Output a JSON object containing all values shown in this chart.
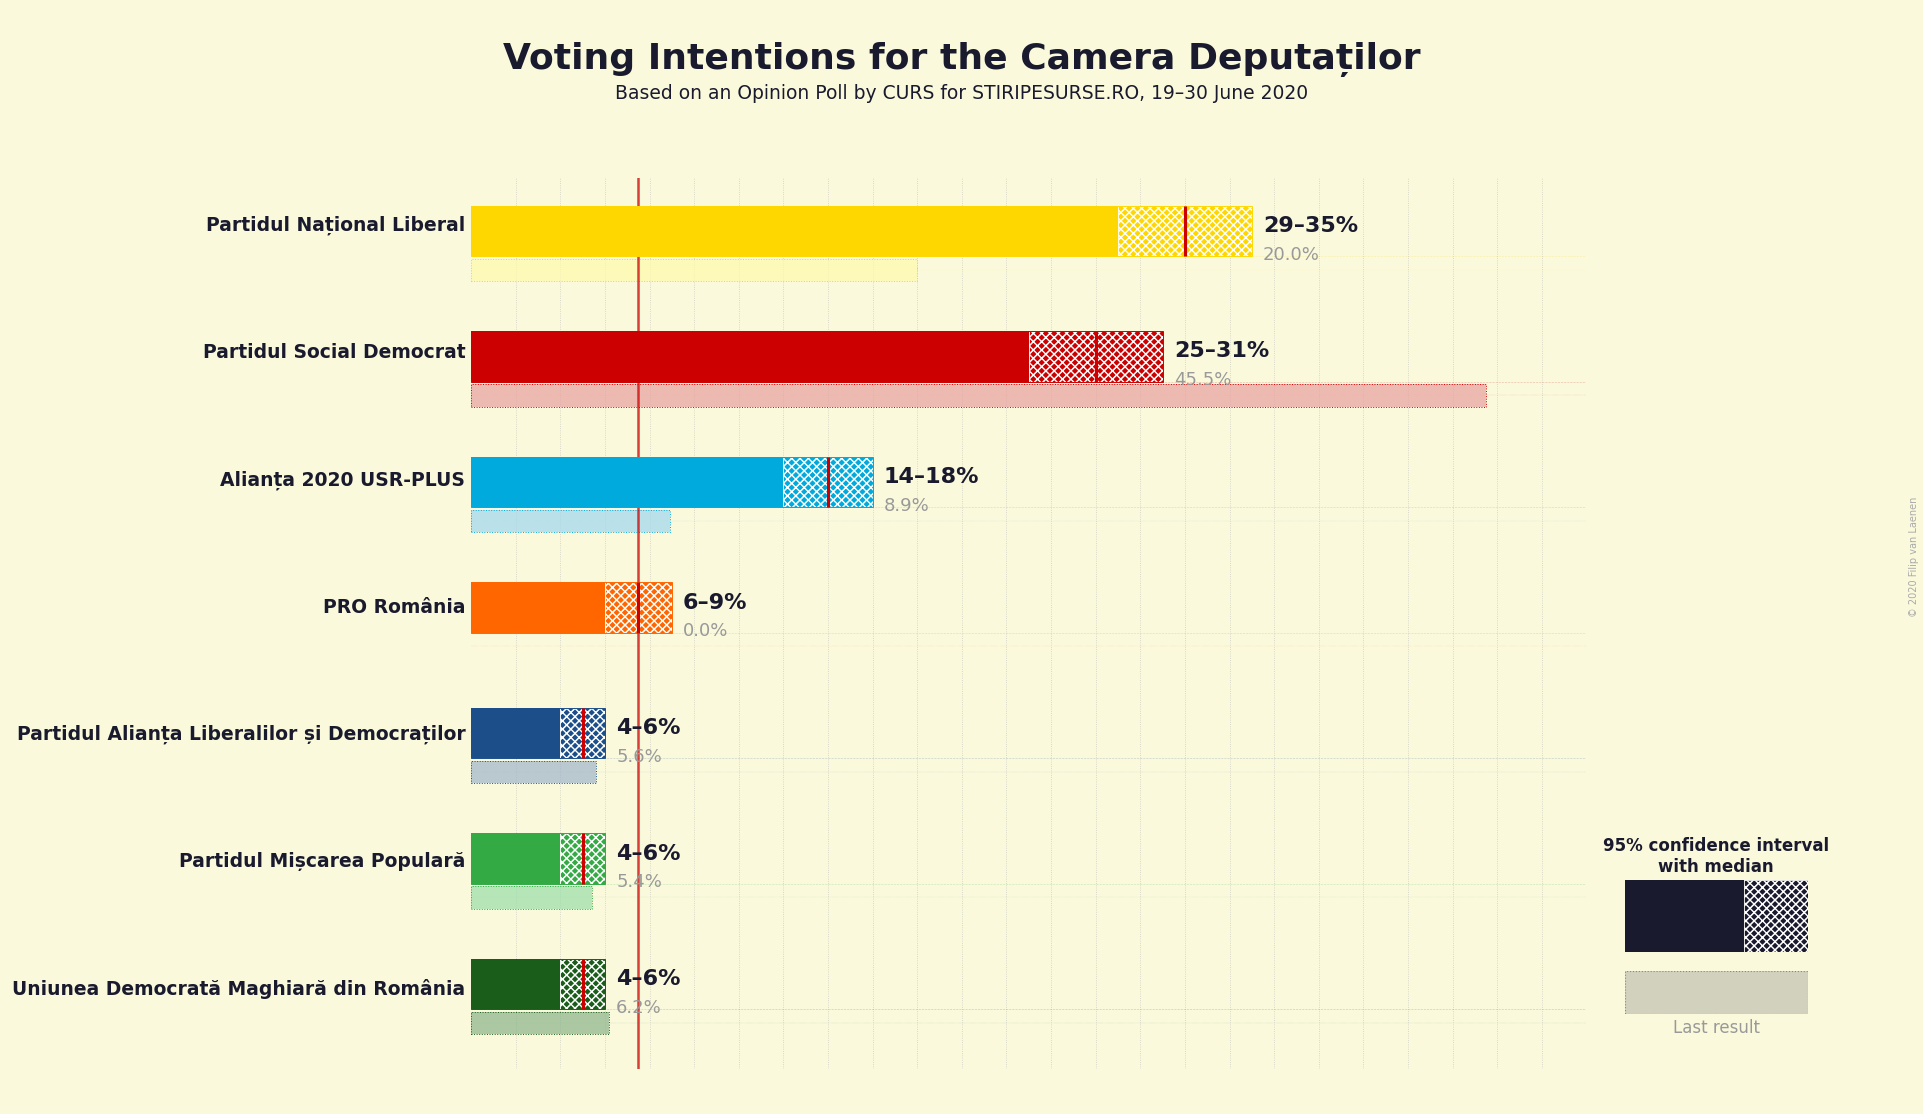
{
  "title": "Voting Intentions for the Camera Deputaților",
  "subtitle": "Based on an Opinion Poll by CURS for STIRIPESURSE.RO, 19–30 June 2020",
  "background_color": "#FAF9DC",
  "parties": [
    {
      "name": "Partidul Național Liberal",
      "color": "#FFD700",
      "color_light": "#FFFAAA",
      "ci_low": 29,
      "ci_high": 35,
      "median": 32,
      "last_result": 20.0,
      "label": "29–35%",
      "last_label": "20.0%"
    },
    {
      "name": "Partidul Social Democrat",
      "color": "#CC0000",
      "color_light": "#E8A0A0",
      "ci_low": 25,
      "ci_high": 31,
      "median": 28,
      "last_result": 45.5,
      "label": "25–31%",
      "last_label": "45.5%"
    },
    {
      "name": "Alianța 2020 USR-PLUS",
      "color": "#00AADD",
      "color_light": "#A0D8EF",
      "ci_low": 14,
      "ci_high": 18,
      "median": 16,
      "last_result": 8.9,
      "label": "14–18%",
      "last_label": "8.9%"
    },
    {
      "name": "PRO România",
      "color": "#FF6600",
      "color_light": "#FFCC99",
      "ci_low": 6,
      "ci_high": 9,
      "median": 7.5,
      "last_result": 0.0,
      "label": "6–9%",
      "last_label": "0.0%"
    },
    {
      "name": "Partidul Alianța Liberalilor și Democraților",
      "color": "#1C4F8A",
      "color_light": "#A0B4CC",
      "ci_low": 4,
      "ci_high": 6,
      "median": 5,
      "last_result": 5.6,
      "label": "4–6%",
      "last_label": "5.6%"
    },
    {
      "name": "Partidul Mișcarea Populară",
      "color": "#33AA44",
      "color_light": "#99DDAA",
      "ci_low": 4,
      "ci_high": 6,
      "median": 5,
      "last_result": 5.4,
      "label": "4–6%",
      "last_label": "5.4%"
    },
    {
      "name": "Uniunea Democrată Maghiară din România",
      "color": "#1A5C1A",
      "color_light": "#8AB48A",
      "ci_low": 4,
      "ci_high": 6,
      "median": 5,
      "last_result": 6.2,
      "label": "4–6%",
      "last_label": "6.2%"
    }
  ],
  "xlim_max": 50,
  "ref_line_x": 7.5,
  "median_line_color": "#CC0000",
  "text_dark": "#1A1A2E",
  "text_gray": "#999999",
  "legend_label1": "95% confidence interval\nwith median",
  "legend_label2": "Last result",
  "copyright": "© 2020 Filip van Laenen"
}
